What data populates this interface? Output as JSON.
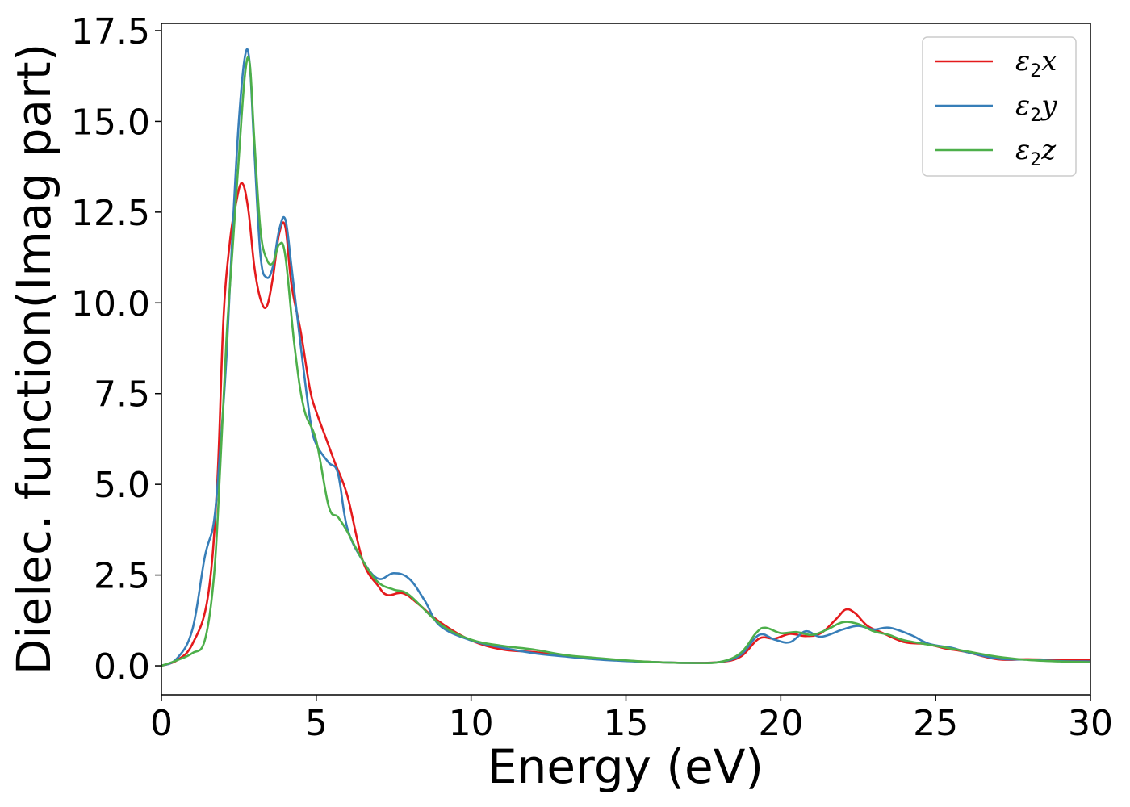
{
  "chart_data": {
    "type": "line",
    "xlabel": "Energy (eV)",
    "ylabel": "Dielec. function(Imag part)",
    "xlim": [
      0,
      30
    ],
    "ylim": [
      -0.8,
      17.7
    ],
    "xticks": [
      0,
      5,
      10,
      15,
      20,
      25,
      30
    ],
    "yticks": [
      0.0,
      2.5,
      5.0,
      7.5,
      10.0,
      12.5,
      15.0,
      17.5
    ],
    "xtick_labels": [
      "0",
      "5",
      "10",
      "15",
      "20",
      "25",
      "30"
    ],
    "ytick_labels": [
      "0.0",
      "2.5",
      "5.0",
      "7.5",
      "10.0",
      "12.5",
      "15.0",
      "17.5"
    ],
    "grid": false,
    "legend_position": "top-right",
    "series": [
      {
        "name": "ε2x",
        "color": "#e41a1c",
        "x": [
          0,
          0.5,
          1.0,
          1.5,
          1.8,
          2.0,
          2.2,
          2.4,
          2.6,
          2.8,
          3.0,
          3.2,
          3.4,
          3.6,
          3.8,
          4.0,
          4.2,
          4.5,
          4.8,
          5.0,
          5.3,
          5.6,
          6.0,
          6.5,
          7.0,
          7.3,
          7.8,
          8.3,
          9.0,
          10.0,
          11.0,
          12.0,
          13.0,
          14.0,
          15.0,
          16.0,
          17.0,
          18.0,
          18.7,
          19.3,
          19.8,
          20.3,
          20.8,
          21.3,
          21.8,
          22.1,
          22.4,
          22.8,
          23.3,
          24.0,
          24.7,
          25.3,
          26.0,
          27.0,
          28.0,
          29.0,
          30.0
        ],
        "values": [
          0.0,
          0.15,
          0.6,
          1.9,
          5.0,
          9.5,
          11.6,
          12.7,
          13.3,
          12.6,
          11.0,
          10.1,
          9.9,
          10.7,
          11.9,
          12.1,
          10.5,
          9.2,
          7.6,
          7.0,
          6.3,
          5.6,
          4.7,
          2.9,
          2.2,
          1.95,
          2.0,
          1.7,
          1.2,
          0.7,
          0.45,
          0.38,
          0.28,
          0.2,
          0.14,
          0.1,
          0.08,
          0.1,
          0.25,
          0.75,
          0.75,
          0.88,
          0.82,
          0.9,
          1.3,
          1.55,
          1.45,
          1.1,
          0.9,
          0.65,
          0.6,
          0.48,
          0.38,
          0.18,
          0.18,
          0.16,
          0.15
        ]
      },
      {
        "name": "ε2y",
        "color": "#377eb8",
        "x": [
          0,
          0.5,
          1.0,
          1.4,
          1.7,
          1.9,
          2.1,
          2.3,
          2.5,
          2.7,
          2.85,
          3.0,
          3.2,
          3.4,
          3.6,
          3.8,
          4.0,
          4.2,
          4.5,
          4.8,
          5.0,
          5.4,
          5.7,
          6.0,
          6.5,
          7.0,
          7.5,
          8.0,
          8.5,
          9.0,
          10.0,
          11.0,
          12.0,
          13.0,
          14.0,
          15.0,
          16.0,
          17.0,
          18.0,
          18.7,
          19.3,
          19.8,
          20.3,
          20.8,
          21.3,
          22.0,
          22.5,
          23.0,
          23.5,
          24.2,
          24.8,
          25.5,
          26.0,
          27.0,
          28.0,
          29.0,
          30.0
        ],
        "values": [
          0.0,
          0.2,
          1.0,
          3.0,
          4.0,
          6.0,
          8.5,
          12.0,
          15.0,
          16.8,
          16.6,
          14.2,
          11.3,
          10.7,
          11.0,
          12.0,
          12.3,
          11.0,
          8.8,
          6.8,
          6.1,
          5.6,
          5.3,
          3.8,
          2.9,
          2.4,
          2.55,
          2.4,
          1.8,
          1.1,
          0.7,
          0.5,
          0.35,
          0.26,
          0.18,
          0.13,
          0.1,
          0.08,
          0.1,
          0.3,
          0.85,
          0.72,
          0.65,
          0.95,
          0.8,
          1.0,
          1.1,
          1.0,
          1.05,
          0.85,
          0.6,
          0.5,
          0.38,
          0.2,
          0.17,
          0.13,
          0.12
        ]
      },
      {
        "name": "ε2z",
        "color": "#4daf4a",
        "x": [
          0,
          0.5,
          1.0,
          1.4,
          1.7,
          1.9,
          2.1,
          2.3,
          2.5,
          2.7,
          2.85,
          3.0,
          3.2,
          3.4,
          3.6,
          3.8,
          4.0,
          4.3,
          4.6,
          5.0,
          5.4,
          5.7,
          6.0,
          6.5,
          7.0,
          7.5,
          8.0,
          9.0,
          10.0,
          11.0,
          12.0,
          13.0,
          14.0,
          15.0,
          16.0,
          17.0,
          18.0,
          18.7,
          19.2,
          19.5,
          20.0,
          20.5,
          21.0,
          21.5,
          22.0,
          22.5,
          23.0,
          23.5,
          24.0,
          25.0,
          26.0,
          27.0,
          28.0,
          29.0,
          30.0
        ],
        "values": [
          0.0,
          0.15,
          0.35,
          0.7,
          2.5,
          5.5,
          9.0,
          11.5,
          14.0,
          16.3,
          16.6,
          14.5,
          12.0,
          11.2,
          11.1,
          11.6,
          11.3,
          8.8,
          7.1,
          6.2,
          4.4,
          4.1,
          3.7,
          2.9,
          2.3,
          2.1,
          1.95,
          1.15,
          0.72,
          0.55,
          0.45,
          0.3,
          0.22,
          0.15,
          0.1,
          0.08,
          0.1,
          0.35,
          0.9,
          1.05,
          0.9,
          0.93,
          0.85,
          1.0,
          1.2,
          1.15,
          0.95,
          0.85,
          0.7,
          0.55,
          0.4,
          0.25,
          0.16,
          0.12,
          0.1
        ]
      }
    ]
  }
}
